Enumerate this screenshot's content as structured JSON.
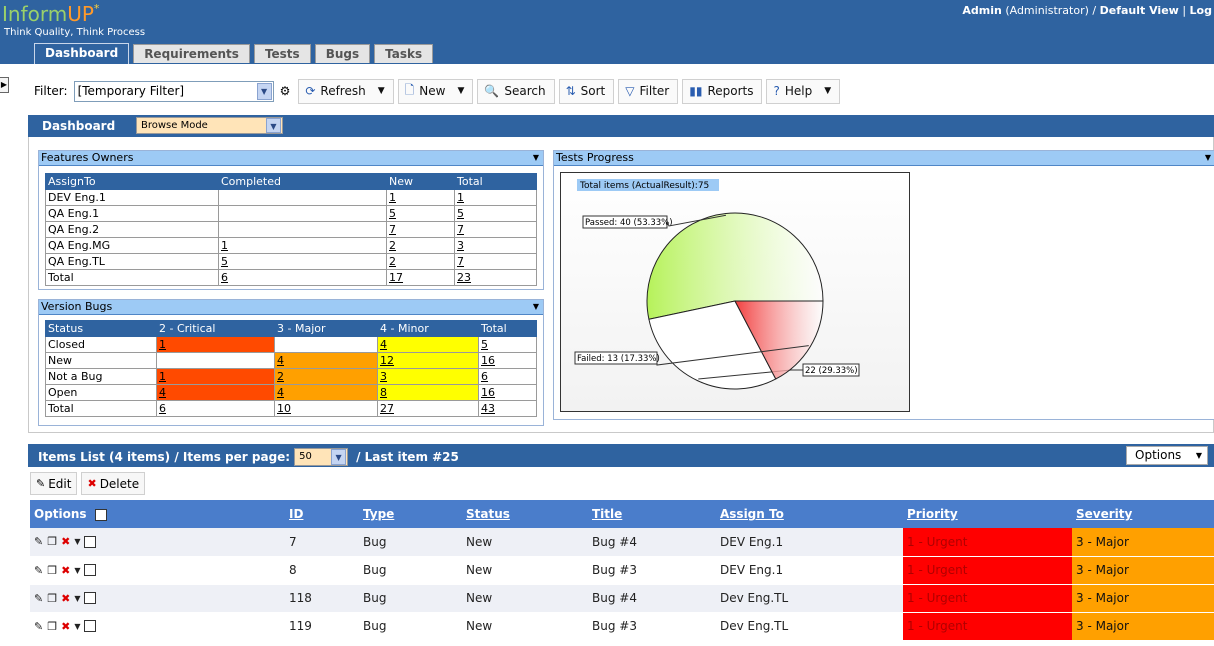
{
  "header": {
    "logo_inform": "Inform",
    "logo_up": "UP",
    "logo_star": "*",
    "tagline": "Think Quality, Think Process",
    "user_name": "Admin",
    "user_role": "(Administrator)",
    "separator": "/",
    "view_name": "Default View",
    "pipe": "|",
    "logout": "Log"
  },
  "tabs": [
    "Dashboard",
    "Requirements",
    "Tests",
    "Bugs",
    "Tasks"
  ],
  "toolbar": {
    "filter_label": "Filter:",
    "filter_value": "[Temporary Filter]",
    "buttons": {
      "refresh": "Refresh",
      "new": "New",
      "search": "Search",
      "sort": "Sort",
      "filter": "Filter",
      "reports": "Reports",
      "help": "Help"
    }
  },
  "dashboard": {
    "title": "Dashboard",
    "mode": "Browse Mode"
  },
  "features_owners": {
    "title": "Features Owners",
    "headers": [
      "AssignTo",
      "Completed",
      "New",
      "Total"
    ],
    "rows": [
      [
        "DEV Eng.1",
        "",
        "1",
        "1"
      ],
      [
        "QA Eng.1",
        "",
        "5",
        "5"
      ],
      [
        "QA Eng.2",
        "",
        "7",
        "7"
      ],
      [
        "QA Eng.MG",
        "1",
        "2",
        "3"
      ],
      [
        "QA Eng.TL",
        "5",
        "2",
        "7"
      ],
      [
        "Total",
        "6",
        "17",
        "23"
      ]
    ]
  },
  "version_bugs": {
    "title": "Version Bugs",
    "headers": [
      "Status",
      "2 - Critical",
      "3 - Major",
      "4 - Minor",
      "Total"
    ],
    "rows": [
      [
        "Closed",
        "1",
        "",
        "4",
        "5"
      ],
      [
        "New",
        "",
        "4",
        "12",
        "16"
      ],
      [
        "Not a Bug",
        "1",
        "2",
        "3",
        "6"
      ],
      [
        "Open",
        "4",
        "4",
        "8",
        "16"
      ],
      [
        "Total",
        "6",
        "10",
        "27",
        "43"
      ]
    ]
  },
  "tests_progress": {
    "title": "Tests Progress"
  },
  "chart_data": {
    "type": "pie",
    "title": "Total items (ActualResult):75",
    "slices": [
      {
        "label": "Passed: 40 (53.33%)",
        "value": 40,
        "color": "#b6f25a"
      },
      {
        "label": "22 (29.33%)",
        "value": 22,
        "color": "#ffffff"
      },
      {
        "label": "Failed: 13 (17.33%)",
        "value": 13,
        "color": "#f24040"
      }
    ]
  },
  "items_list": {
    "title": "Items List",
    "count_text": "(4 items)",
    "per_page_label": "/ Items per page:",
    "per_page": "50",
    "last_item": "/ Last item #25",
    "options_label": "Options",
    "edit_label": "Edit",
    "delete_label": "Delete",
    "headers": [
      "Options",
      "ID",
      "Type",
      "Status",
      "Title",
      "Assign To",
      "Priority",
      "Severity"
    ],
    "rows": [
      [
        "7",
        "Bug",
        "New",
        "Bug #4",
        "DEV Eng.1",
        "1 - Urgent",
        "3 - Major"
      ],
      [
        "8",
        "Bug",
        "New",
        "Bug #3",
        "DEV Eng.1",
        "1 - Urgent",
        "3 - Major"
      ],
      [
        "118",
        "Bug",
        "New",
        "Bug #4",
        "Dev Eng.TL",
        "1 - Urgent",
        "3 - Major"
      ],
      [
        "119",
        "Bug",
        "New",
        "Bug #3",
        "Dev Eng.TL",
        "1 - Urgent",
        "3 - Major"
      ]
    ]
  },
  "colors": {
    "header_blue": "#2f63a0",
    "critical": "#ff4a00",
    "major": "#ffa000",
    "minor": "#ffff00",
    "urgent": "#ff0000"
  }
}
